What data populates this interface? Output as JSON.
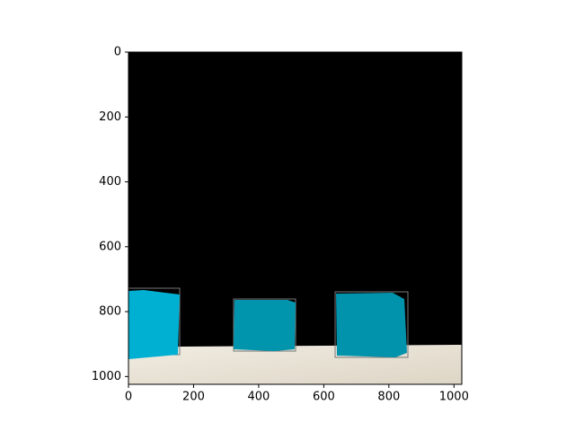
{
  "chart_data": {
    "type": "image",
    "xlim": [
      0,
      1024
    ],
    "ylim": [
      1024,
      0
    ],
    "xticks": [
      0,
      200,
      400,
      600,
      800,
      1000
    ],
    "yticks": [
      0,
      200,
      400,
      600,
      800,
      1000
    ]
  }
}
